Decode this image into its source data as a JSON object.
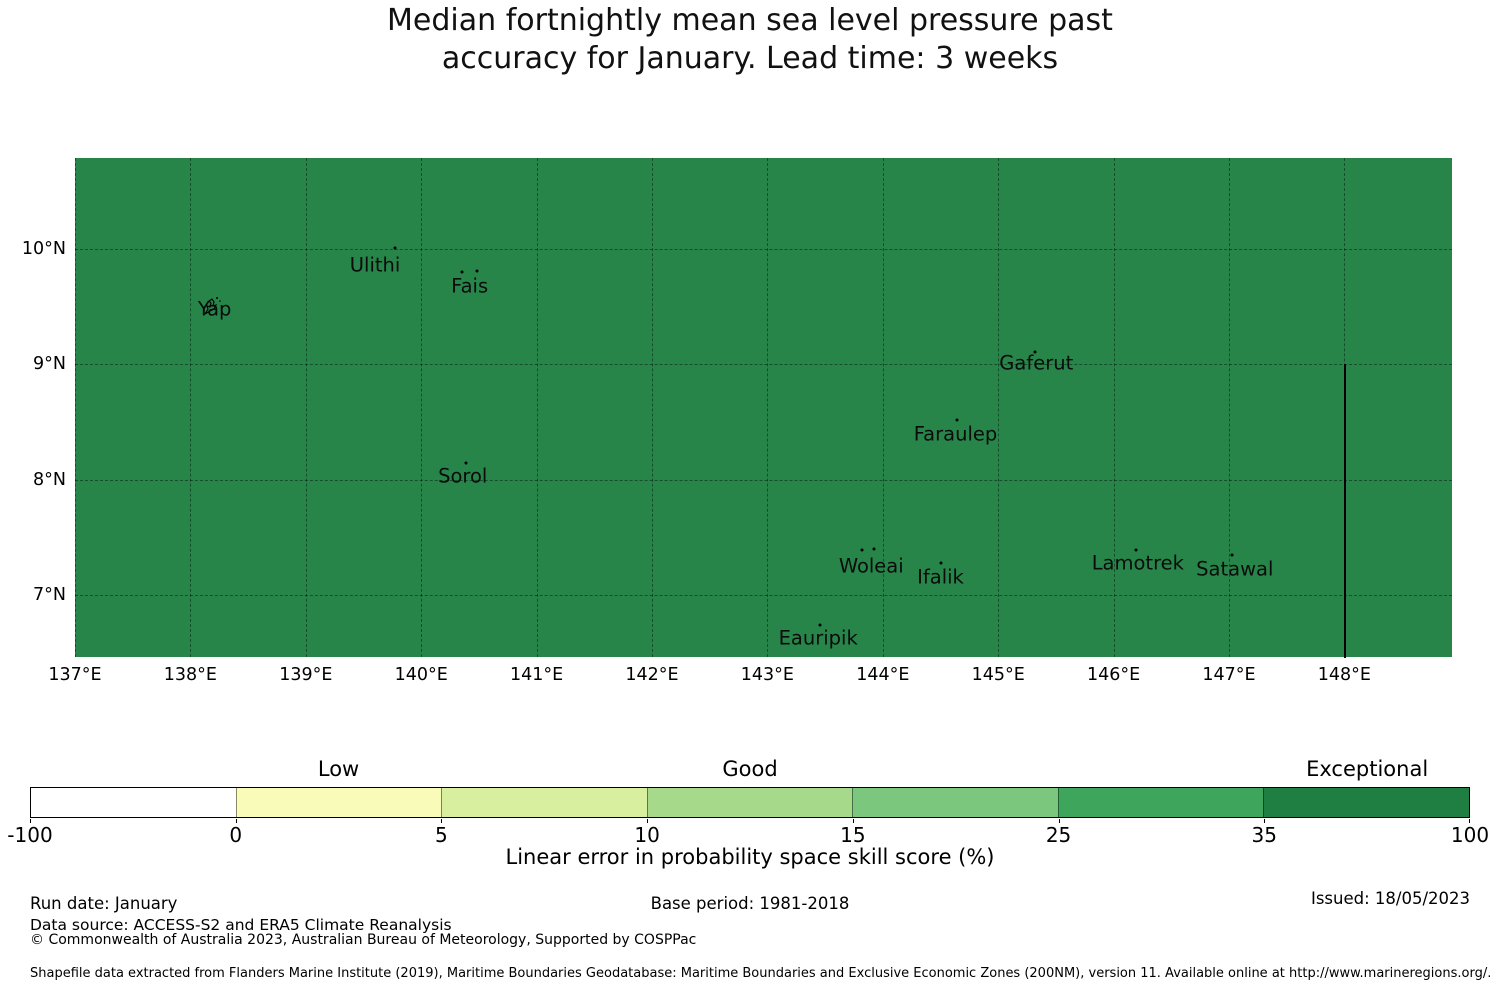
{
  "title": {
    "line1": "Median fortnightly mean sea level pressure past",
    "line2": "accuracy for January. Lead time: 3 weeks"
  },
  "map": {
    "fill_color": "#27854a",
    "x_ticks": [
      {
        "label": "137°E",
        "lon": 137
      },
      {
        "label": "138°E",
        "lon": 138
      },
      {
        "label": "139°E",
        "lon": 139
      },
      {
        "label": "140°E",
        "lon": 140
      },
      {
        "label": "141°E",
        "lon": 141
      },
      {
        "label": "142°E",
        "lon": 142
      },
      {
        "label": "143°E",
        "lon": 143
      },
      {
        "label": "144°E",
        "lon": 144
      },
      {
        "label": "145°E",
        "lon": 145
      },
      {
        "label": "146°E",
        "lon": 146
      },
      {
        "label": "147°E",
        "lon": 147
      },
      {
        "label": "148°E",
        "lon": 148
      }
    ],
    "y_ticks": [
      {
        "label": "10°N",
        "lat": 10
      },
      {
        "label": "9°N",
        "lat": 9
      },
      {
        "label": "8°N",
        "lat": 8
      },
      {
        "label": "7°N",
        "lat": 7
      }
    ],
    "islands": [
      {
        "name": "Ulithi",
        "label_lon": 139.6,
        "label_lat": 9.86,
        "dots": [
          {
            "lon": 139.77,
            "lat": 10.01
          }
        ]
      },
      {
        "name": "Fais",
        "label_lon": 140.42,
        "label_lat": 9.68,
        "dots": [
          {
            "lon": 140.35,
            "lat": 9.8
          },
          {
            "lon": 140.48,
            "lat": 9.81
          }
        ]
      },
      {
        "name": "Yap",
        "label_lon": 138.21,
        "label_lat": 9.48,
        "dots": [],
        "shape": "yap-island-outline"
      },
      {
        "name": "Gaferut",
        "label_lon": 145.33,
        "label_lat": 9.01,
        "dots": [
          {
            "lon": 145.32,
            "lat": 9.11
          }
        ]
      },
      {
        "name": "Faraulep",
        "label_lon": 144.63,
        "label_lat": 8.4,
        "dots": [
          {
            "lon": 144.64,
            "lat": 8.52
          }
        ]
      },
      {
        "name": "Sorol",
        "label_lon": 140.36,
        "label_lat": 8.03,
        "dots": [
          {
            "lon": 140.39,
            "lat": 8.15
          }
        ]
      },
      {
        "name": "Woleai",
        "label_lon": 143.9,
        "label_lat": 7.25,
        "dots": [
          {
            "lon": 143.82,
            "lat": 7.39
          },
          {
            "lon": 143.92,
            "lat": 7.4
          }
        ]
      },
      {
        "name": "Ifalik",
        "label_lon": 144.5,
        "label_lat": 7.16,
        "dots": [
          {
            "lon": 144.5,
            "lat": 7.28
          }
        ]
      },
      {
        "name": "Lamotrek",
        "label_lon": 146.21,
        "label_lat": 7.28,
        "dots": [
          {
            "lon": 146.19,
            "lat": 7.39
          }
        ]
      },
      {
        "name": "Satawal",
        "label_lon": 147.05,
        "label_lat": 7.23,
        "dots": [
          {
            "lon": 147.03,
            "lat": 7.35
          }
        ]
      },
      {
        "name": "Eauripik",
        "label_lon": 143.44,
        "label_lat": 6.63,
        "dots": [
          {
            "lon": 143.46,
            "lat": 6.74
          }
        ]
      }
    ],
    "boundary_line": {
      "lon": 148.0,
      "lat_from": 9.0,
      "lat_to": 6.46,
      "color": "#000000"
    }
  },
  "colorbar": {
    "segments": [
      {
        "from": -100,
        "to": 0,
        "color": "#ffffff",
        "category": ""
      },
      {
        "from": 0,
        "to": 5,
        "color": "#f9fcb8",
        "category": "Low"
      },
      {
        "from": 5,
        "to": 10,
        "color": "#d9efa0",
        "category": ""
      },
      {
        "from": 10,
        "to": 15,
        "color": "#a6d989",
        "category": "Good"
      },
      {
        "from": 15,
        "to": 25,
        "color": "#7bc77d",
        "category": ""
      },
      {
        "from": 25,
        "to": 35,
        "color": "#3ea55c",
        "category": ""
      },
      {
        "from": 35,
        "to": 100,
        "color": "#1f7e41",
        "category": "Exceptional"
      }
    ],
    "tick_labels": [
      "-100",
      "0",
      "5",
      "10",
      "15",
      "25",
      "35",
      "100"
    ],
    "axis_label": "Linear error in probability space skill score (%)"
  },
  "footer": {
    "run_date": "Run date: January",
    "base_period": "Base period: 1981-2018",
    "issued": "Issued: 18/05/2023",
    "data_source": "Data source: ACCESS-S2 and ERA5 Climate Reanalysis",
    "copyright": "© Commonwealth of Australia 2023, Australian Bureau of Meteorology, Supported by COSPPac",
    "shapefile_note": "Shapefile data extracted from Flanders Marine Institute (2019), Maritime Boundaries Geodatabase: Maritime Boundaries and Exclusive Economic Zones (200NM), version 11. Available online at http://www.marineregions.org/."
  },
  "chart_data": {
    "type": "heatmap",
    "title": "Median fortnightly mean sea level pressure past accuracy for January. Lead time: 3 weeks",
    "x_ticks": [
      "137°E",
      "138°E",
      "139°E",
      "140°E",
      "141°E",
      "142°E",
      "143°E",
      "144°E",
      "145°E",
      "146°E",
      "147°E",
      "148°E"
    ],
    "y_ticks": [
      "10°N",
      "9°N",
      "8°N",
      "7°N"
    ],
    "x_range_deg_east": [
      137.0,
      148.93
    ],
    "y_range_deg_north": [
      6.46,
      10.79
    ],
    "region_fill_value_bin": "35-100",
    "region_fill_category": "Exceptional",
    "grid": true,
    "islands": [
      {
        "name": "Yap",
        "lon": 138.2,
        "lat": 9.5
      },
      {
        "name": "Ulithi",
        "lon": 139.77,
        "lat": 10.01
      },
      {
        "name": "Fais",
        "lon": 140.42,
        "lat": 9.8
      },
      {
        "name": "Sorol",
        "lon": 140.39,
        "lat": 8.15
      },
      {
        "name": "Gaferut",
        "lon": 145.32,
        "lat": 9.11
      },
      {
        "name": "Faraulep",
        "lon": 144.64,
        "lat": 8.52
      },
      {
        "name": "Woleai",
        "lon": 143.87,
        "lat": 7.4
      },
      {
        "name": "Ifalik",
        "lon": 144.5,
        "lat": 7.28
      },
      {
        "name": "Lamotrek",
        "lon": 146.19,
        "lat": 7.39
      },
      {
        "name": "Satawal",
        "lon": 147.03,
        "lat": 7.35
      },
      {
        "name": "Eauripik",
        "lon": 143.46,
        "lat": 6.74
      }
    ],
    "colorbar": {
      "label": "Linear error in probability space skill score (%)",
      "bin_edges": [
        -100,
        0,
        5,
        10,
        15,
        25,
        35,
        100
      ],
      "bin_colors": [
        "#ffffff",
        "#f9fcb8",
        "#d9efa0",
        "#a6d989",
        "#7bc77d",
        "#3ea55c",
        "#1f7e41"
      ],
      "category_labels": {
        "Low": "0-5",
        "Good": "10-15",
        "Exceptional": "35-100"
      },
      "legend_position": "bottom"
    },
    "boundary_line": {
      "lon": 148.0,
      "lat_range": [
        6.46,
        9.0
      ]
    }
  }
}
